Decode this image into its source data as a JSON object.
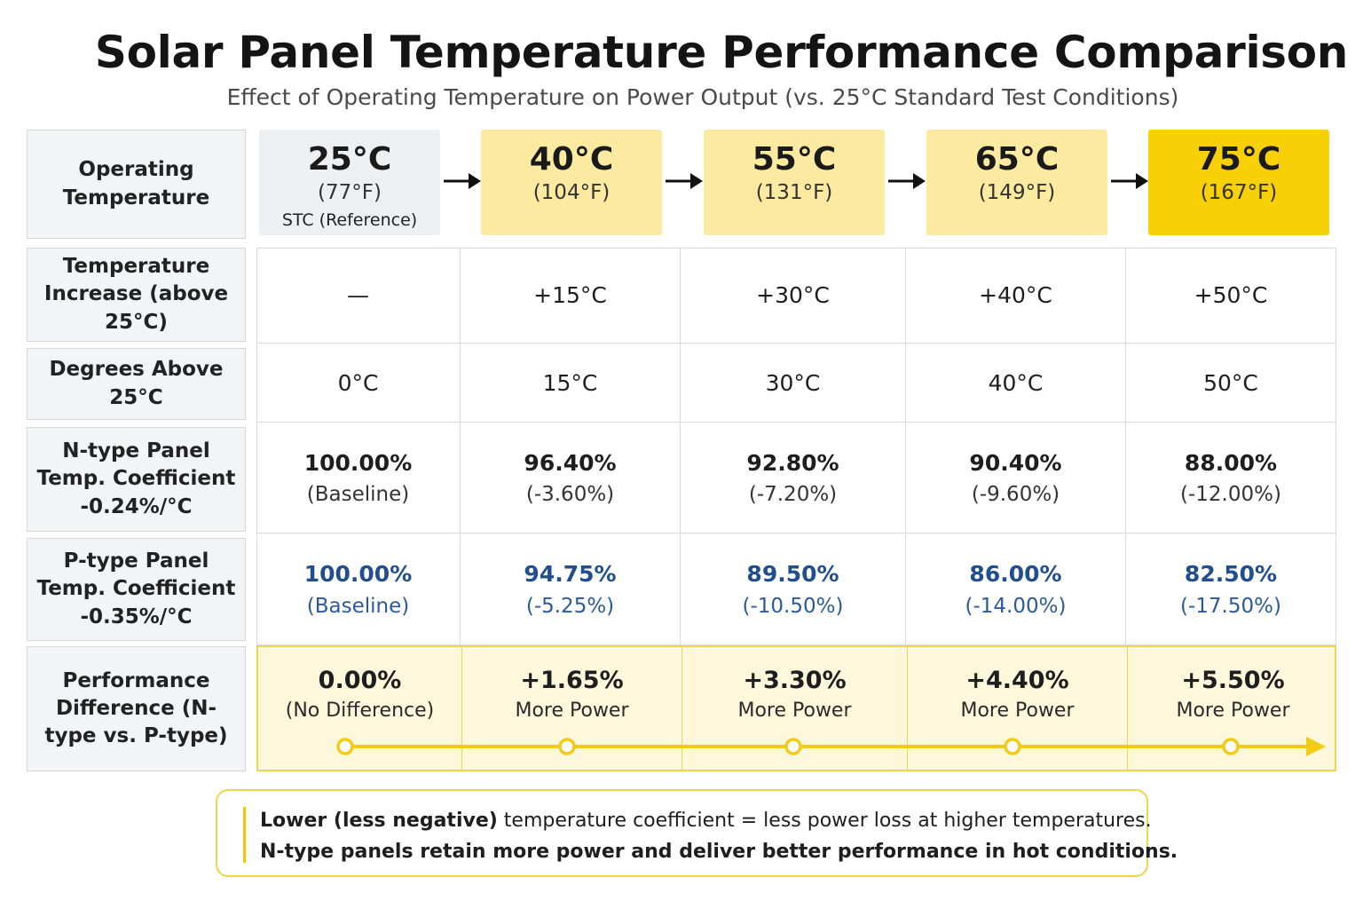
{
  "title": "Solar Panel Temperature Performance Comparison",
  "subtitle": "Effect of Operating Temperature on Power Output (vs. 25°C Standard Test Conditions)",
  "colors": {
    "reference_box": "#edf0f3",
    "light_yellow": "#fbeaa0",
    "strong_yellow": "#f7d007",
    "blue_text": "#204e8e",
    "accent_yellow": "#f0d44a",
    "timeline_yellow": "#f2cb16"
  },
  "row_labels": {
    "operating_temperature": "Operating Temperature",
    "temperature_increase": "Temperature Increase (above 25°C)",
    "degrees_above": "Degrees Above 25°C",
    "ntype": "N-type Panel Temp. Coefficient -0.24%/°C",
    "ptype": "P-type Panel Temp. Coefficient -0.35%/°C",
    "performance": "Performance Difference (N-type vs. P-type)"
  },
  "temperatures": [
    {
      "c": "25°C",
      "f": "(77°F)",
      "ref": "STC (Reference)"
    },
    {
      "c": "40°C",
      "f": "(104°F)",
      "ref": ""
    },
    {
      "c": "55°C",
      "f": "(131°F)",
      "ref": ""
    },
    {
      "c": "65°C",
      "f": "(149°F)",
      "ref": ""
    },
    {
      "c": "75°C",
      "f": "(167°F)",
      "ref": ""
    }
  ],
  "temperature_increase": [
    "—",
    "+15°C",
    "+30°C",
    "+40°C",
    "+50°C"
  ],
  "degrees_above": [
    "0°C",
    "15°C",
    "30°C",
    "40°C",
    "50°C"
  ],
  "ntype": [
    {
      "value": "100.00%",
      "change": "(Baseline)"
    },
    {
      "value": "96.40%",
      "change": "(-3.60%)"
    },
    {
      "value": "92.80%",
      "change": "(-7.20%)"
    },
    {
      "value": "90.40%",
      "change": "(-9.60%)"
    },
    {
      "value": "88.00%",
      "change": "(-12.00%)"
    }
  ],
  "ptype": [
    {
      "value": "100.00%",
      "change": "(Baseline)"
    },
    {
      "value": "94.75%",
      "change": "(-5.25%)"
    },
    {
      "value": "89.50%",
      "change": "(-10.50%)"
    },
    {
      "value": "86.00%",
      "change": "(-14.00%)"
    },
    {
      "value": "82.50%",
      "change": "(-17.50%)"
    }
  ],
  "performance": [
    {
      "value": "0.00%",
      "label": "(No Difference)"
    },
    {
      "value": "+1.65%",
      "label": "More Power"
    },
    {
      "value": "+3.30%",
      "label": "More Power"
    },
    {
      "value": "+4.40%",
      "label": "More Power"
    },
    {
      "value": "+5.50%",
      "label": "More Power"
    }
  ],
  "note": {
    "line1_bold": "Lower (less negative)",
    "line1_rest": " temperature coefficient = less power loss at higher temperatures.",
    "line2": "N-type panels retain more power and deliver better performance in hot conditions."
  },
  "chart_data": {
    "type": "table",
    "title": "Solar Panel Temperature Performance Comparison",
    "subtitle": "Effect of Operating Temperature on Power Output (vs. 25°C Standard Test Conditions)",
    "columns_c": [
      25,
      40,
      55,
      65,
      75
    ],
    "columns_f": [
      77,
      104,
      131,
      149,
      167
    ],
    "degrees_above_25": [
      0,
      15,
      30,
      40,
      50
    ],
    "series": [
      {
        "name": "N-type Panel Temp. Coefficient -0.24%/°C",
        "values": [
          100.0,
          96.4,
          92.8,
          90.4,
          88.0
        ],
        "changes": [
          0,
          -3.6,
          -7.2,
          -9.6,
          -12.0
        ]
      },
      {
        "name": "P-type Panel Temp. Coefficient -0.35%/°C",
        "values": [
          100.0,
          94.75,
          89.5,
          86.0,
          82.5
        ],
        "changes": [
          0,
          -5.25,
          -10.5,
          -14.0,
          -17.5
        ]
      },
      {
        "name": "Performance Difference (N-type vs. P-type)",
        "values": [
          0.0,
          1.65,
          3.3,
          4.4,
          5.5
        ]
      }
    ]
  }
}
